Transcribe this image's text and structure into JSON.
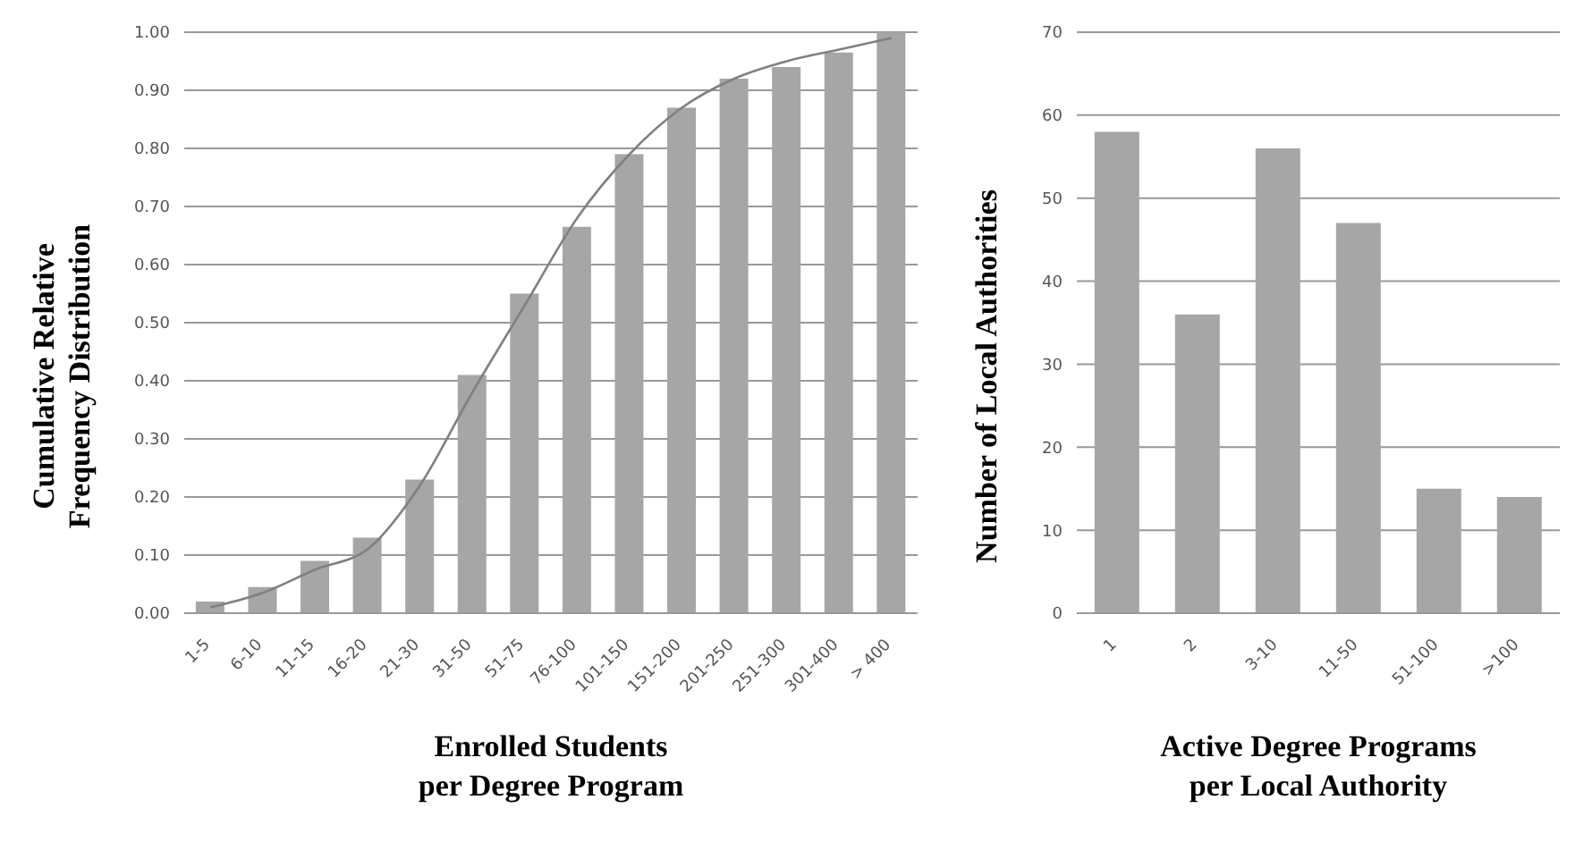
{
  "chart_data": [
    {
      "type": "bar",
      "xlabel": "Enrolled Students per Degree Program",
      "ylabel": "Cumulative Relative Frequency Distribution",
      "categories": [
        "1-5",
        "6-10",
        "11-15",
        "16-20",
        "21-30",
        "31-50",
        "51-75",
        "76-100",
        "101-150",
        "151-200",
        "201-250",
        "251-300",
        "301-400",
        "> 400"
      ],
      "series": [
        {
          "color": "#a6a6a6",
          "values": [
            0.02,
            0.045,
            0.09,
            0.13,
            0.23,
            0.41,
            0.55,
            0.665,
            0.79,
            0.87,
            0.92,
            0.94,
            0.965,
            1.0
          ]
        },
        {
          "type": "line",
          "color": "#808080",
          "values": [
            0.01,
            0.035,
            0.075,
            0.11,
            0.22,
            0.38,
            0.53,
            0.68,
            0.79,
            0.87,
            0.92,
            0.95,
            0.97,
            0.99
          ]
        }
      ],
      "ylim": [
        0,
        1
      ],
      "yticks": [
        {
          "value": 0,
          "label": "0.00"
        },
        {
          "value": 0.1,
          "label": "0.10"
        },
        {
          "value": 0.2,
          "label": "0.20"
        },
        {
          "value": 0.3,
          "label": "0.30"
        },
        {
          "value": 0.4,
          "label": "0.40"
        },
        {
          "value": 0.5,
          "label": "0.50"
        },
        {
          "value": 0.6,
          "label": "0.60"
        },
        {
          "value": 0.7,
          "label": "0.70"
        },
        {
          "value": 0.8,
          "label": "0.80"
        },
        {
          "value": 0.9,
          "label": "0.90"
        },
        {
          "value": 1,
          "label": "1.00"
        }
      ],
      "grid": "y",
      "marker": "none",
      "line_style": "solid"
    },
    {
      "type": "bar",
      "xlabel": "Active Degree Programs per Local Authority",
      "ylabel": "Number of Local Authorities",
      "categories": [
        "1",
        "2",
        "3-10",
        "11-50",
        "51-100",
        ">100"
      ],
      "series": [
        {
          "color": "#a6a6a6",
          "values": [
            58,
            36,
            56,
            47,
            15,
            14
          ]
        }
      ],
      "ylim": [
        0,
        70
      ],
      "yticks": [
        0,
        10,
        20,
        30,
        40,
        50,
        60,
        70
      ],
      "grid": "y"
    }
  ]
}
